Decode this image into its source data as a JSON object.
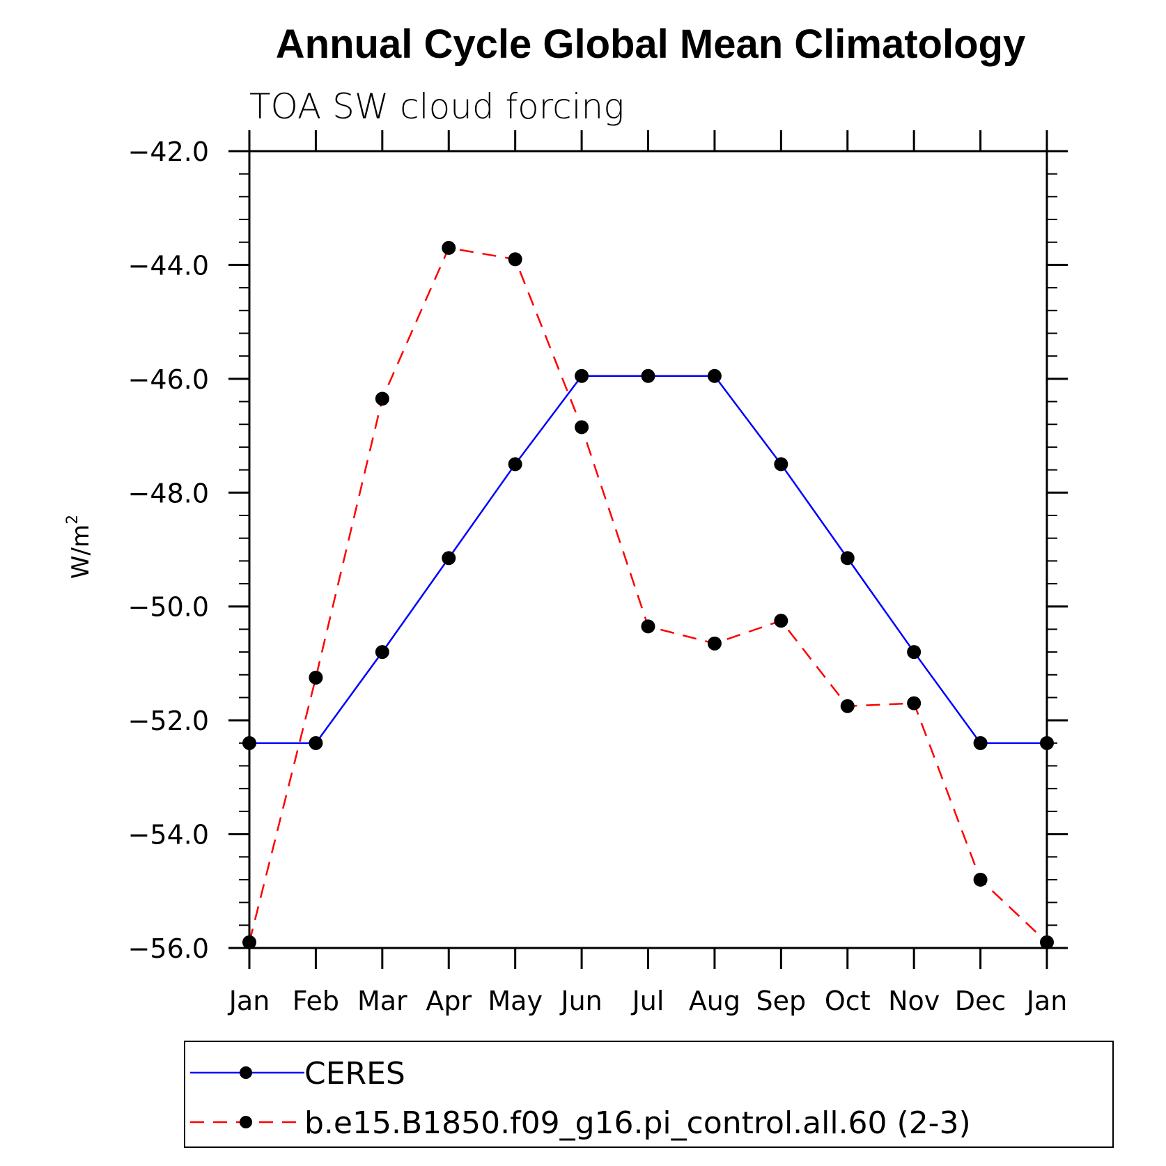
{
  "chart_data": {
    "type": "line",
    "title": "Annual Cycle Global Mean Climatology",
    "subtitle": "TOA SW cloud forcing",
    "ylabel": "W/m",
    "ylabel_superscript": "2",
    "xlabel": "",
    "categories": [
      "Jan",
      "Feb",
      "Mar",
      "Apr",
      "May",
      "Jun",
      "Jul",
      "Aug",
      "Sep",
      "Oct",
      "Nov",
      "Dec",
      "Jan"
    ],
    "ylim": [
      -56.0,
      -42.0
    ],
    "yticks": [
      "-42.0",
      "-44.0",
      "-46.0",
      "-48.0",
      "-50.0",
      "-52.0",
      "-54.0",
      "-56.0"
    ],
    "series": [
      {
        "name": "CERES",
        "color": "#0000ff",
        "style": "solid",
        "marker": "filled-circle",
        "values": [
          -52.4,
          -52.4,
          -50.8,
          -49.15,
          -47.5,
          -45.95,
          -45.95,
          -45.95,
          -47.5,
          -49.15,
          -50.8,
          -52.4,
          -52.4
        ]
      },
      {
        "name": "b.e15.B1850.f09_g16.pi_control.all.60 (2-3)",
        "color": "#ff0000",
        "style": "dashed",
        "marker": "filled-circle",
        "values": [
          -55.9,
          -51.25,
          -46.35,
          -43.7,
          -43.9,
          -46.85,
          -50.35,
          -50.65,
          -50.25,
          -51.75,
          -51.7,
          -54.8,
          -55.9
        ]
      }
    ],
    "grid": false,
    "legend_position": "bottom"
  }
}
